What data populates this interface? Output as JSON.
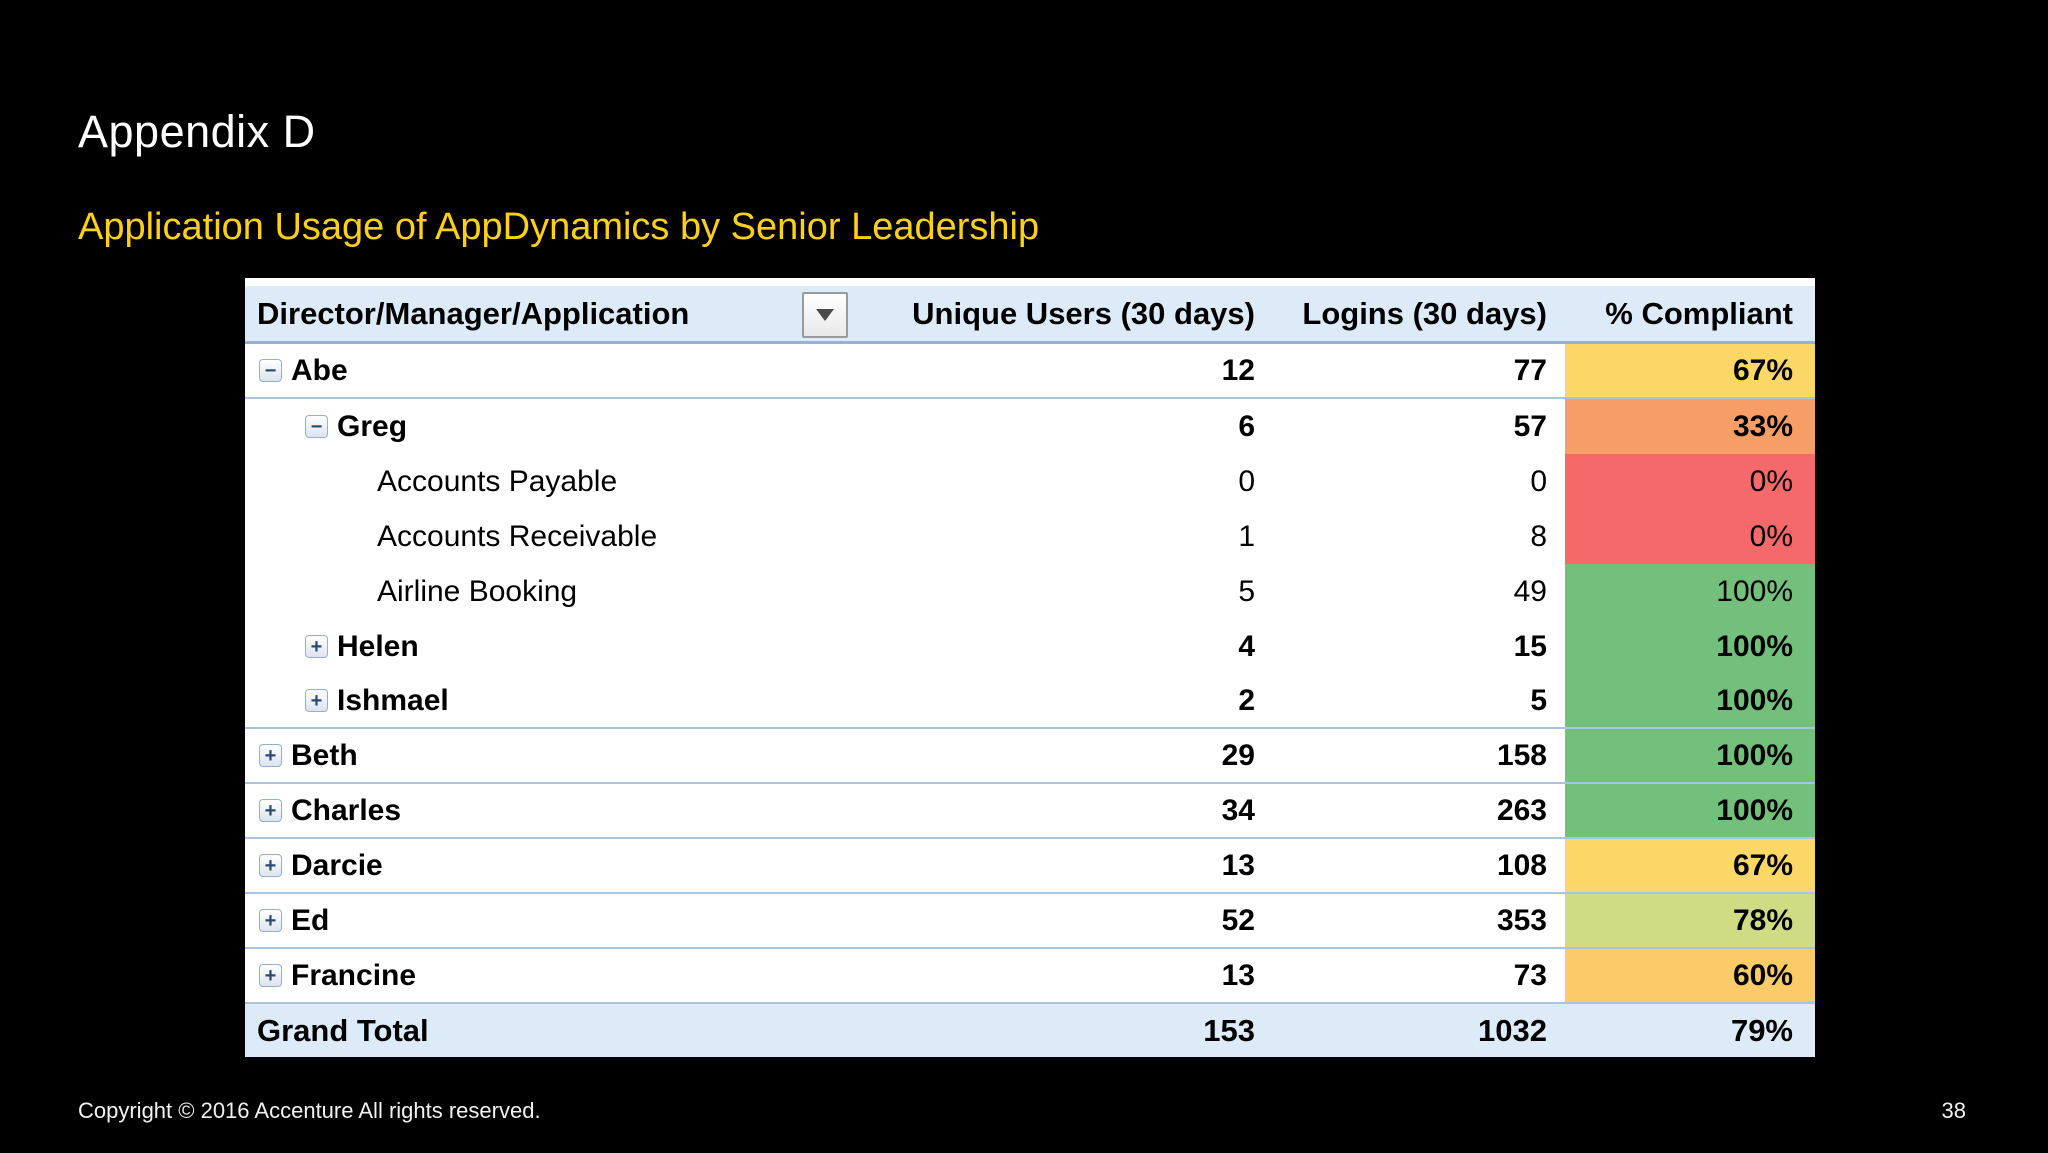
{
  "slide": {
    "title": "Appendix D",
    "subtitle": "Application Usage of AppDynamics by Senior Leadership",
    "footer_copyright": "Copyright © 2016 Accenture  All rights reserved.",
    "footer_page_number": "38"
  },
  "table": {
    "header": {
      "director": "Director/Manager/Application",
      "filter_icon": "chevron-down-icon",
      "unique_users": "Unique Users (30 days)",
      "logins": "Logins (30 days)",
      "compliant": "% Compliant"
    },
    "rows": [
      {
        "name": "Abe",
        "level": 0,
        "toggle": "minus",
        "bold": true,
        "unique_users": "12",
        "logins": "77",
        "compliant": "67%",
        "compliance_color": "yellow",
        "separator": true
      },
      {
        "name": "Greg",
        "level": 1,
        "toggle": "minus",
        "bold": true,
        "unique_users": "6",
        "logins": "57",
        "compliant": "33%",
        "compliance_color": "orange",
        "separator": false
      },
      {
        "name": "Accounts Payable",
        "level": 2,
        "toggle": null,
        "bold": false,
        "unique_users": "0",
        "logins": "0",
        "compliant": "0%",
        "compliance_color": "red",
        "separator": false
      },
      {
        "name": "Accounts Receivable",
        "level": 2,
        "toggle": null,
        "bold": false,
        "unique_users": "1",
        "logins": "8",
        "compliant": "0%",
        "compliance_color": "red",
        "separator": false
      },
      {
        "name": "Airline Booking",
        "level": 2,
        "toggle": null,
        "bold": false,
        "unique_users": "5",
        "logins": "49",
        "compliant": "100%",
        "compliance_color": "green",
        "separator": false
      },
      {
        "name": "Helen",
        "level": 1,
        "toggle": "plus",
        "bold": true,
        "unique_users": "4",
        "logins": "15",
        "compliant": "100%",
        "compliance_color": "green",
        "separator": false
      },
      {
        "name": "Ishmael",
        "level": 1,
        "toggle": "plus",
        "bold": true,
        "unique_users": "2",
        "logins": "5",
        "compliant": "100%",
        "compliance_color": "green",
        "separator": true
      },
      {
        "name": "Beth",
        "level": 0,
        "toggle": "plus",
        "bold": true,
        "unique_users": "29",
        "logins": "158",
        "compliant": "100%",
        "compliance_color": "green",
        "separator": true
      },
      {
        "name": "Charles",
        "level": 0,
        "toggle": "plus",
        "bold": true,
        "unique_users": "34",
        "logins": "263",
        "compliant": "100%",
        "compliance_color": "green",
        "separator": true
      },
      {
        "name": "Darcie",
        "level": 0,
        "toggle": "plus",
        "bold": true,
        "unique_users": "13",
        "logins": "108",
        "compliant": "67%",
        "compliance_color": "yellow",
        "separator": true
      },
      {
        "name": "Ed",
        "level": 0,
        "toggle": "plus",
        "bold": true,
        "unique_users": "52",
        "logins": "353",
        "compliant": "78%",
        "compliance_color": "yellowgreen",
        "separator": true
      },
      {
        "name": "Francine",
        "level": 0,
        "toggle": "plus",
        "bold": true,
        "unique_users": "13",
        "logins": "73",
        "compliant": "60%",
        "compliance_color": "amber",
        "separator": true
      }
    ],
    "grand_total": {
      "label": "Grand Total",
      "unique_users": "153",
      "logins": "1032",
      "compliant": "79%"
    }
  },
  "colors": {
    "compliance": {
      "red": "#F5696B",
      "orange": "#F79E66",
      "yellow": "#FBD765",
      "amber": "#FACB67",
      "yellowgreen": "#CFDC84",
      "green": "#73BF7C"
    },
    "header_bg": "#DDEAF7",
    "accent_border": "#95B3D7",
    "subtitle_yellow": "#FFD115"
  }
}
